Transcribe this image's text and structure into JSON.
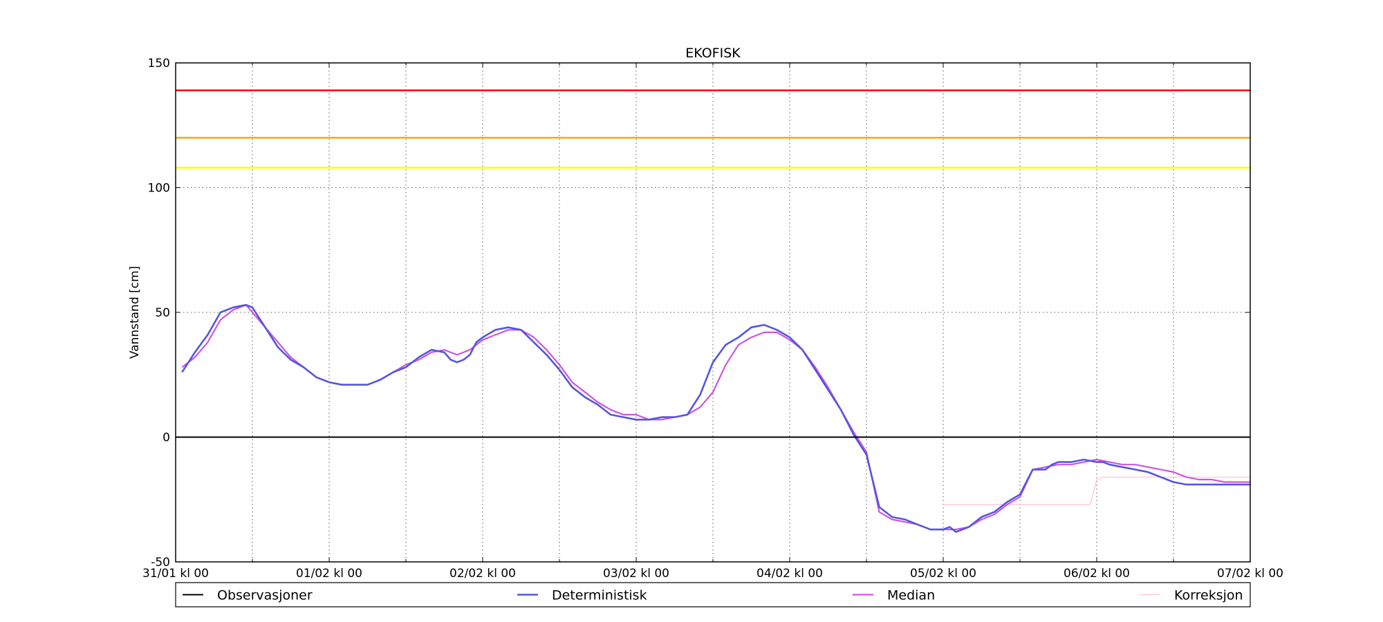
{
  "chart_data": {
    "type": "line",
    "title": "EKOFISK",
    "ylabel": "Vannstand [cm]",
    "xlabel": "",
    "ylim": [
      -50,
      150
    ],
    "yticks": [
      -50,
      0,
      50,
      100,
      150
    ],
    "xlim": [
      0,
      168
    ],
    "xticks": [
      {
        "pos": 0,
        "label": "31/01 kl 00"
      },
      {
        "pos": 24,
        "label": "01/02 kl 00"
      },
      {
        "pos": 48,
        "label": "02/02 kl 00"
      },
      {
        "pos": 72,
        "label": "03/02 kl 00"
      },
      {
        "pos": 96,
        "label": "04/02 kl 00"
      },
      {
        "pos": 120,
        "label": "05/02 kl 00"
      },
      {
        "pos": 144,
        "label": "06/02 kl 00"
      },
      {
        "pos": 168,
        "label": "07/02 kl 00"
      }
    ],
    "minor_xticks": [
      12,
      36,
      60,
      84,
      108,
      132,
      156
    ],
    "grid": true,
    "legend_position": "bottom",
    "thresholds": [
      {
        "value": 139,
        "color": "#ff0000"
      },
      {
        "value": 120,
        "color": "#ffa500"
      },
      {
        "value": 108,
        "color": "#ffff00"
      }
    ],
    "series": [
      {
        "name": "Observasjoner",
        "color": "#000000",
        "x": [
          0,
          168
        ],
        "y": [
          0,
          0
        ]
      },
      {
        "name": "Deterministisk",
        "color": "#5555dd",
        "x": [
          1,
          3,
          5,
          7,
          9,
          11,
          12,
          14,
          16,
          18,
          20,
          22,
          24,
          26,
          28,
          30,
          32,
          34,
          36,
          38,
          40,
          42,
          43,
          44,
          45,
          46,
          47,
          48,
          50,
          52,
          54,
          56,
          58,
          60,
          62,
          64,
          66,
          68,
          70,
          72,
          74,
          76,
          78,
          80,
          82,
          84,
          86,
          88,
          90,
          92,
          94,
          96,
          98,
          100,
          102,
          104,
          106,
          108,
          110,
          112,
          114,
          116,
          118,
          119,
          120,
          121,
          122,
          124,
          126,
          128,
          130,
          132,
          134,
          136,
          137,
          138,
          140,
          142,
          144,
          145,
          146,
          148,
          150,
          152,
          154,
          156,
          158,
          160,
          162,
          164,
          166,
          168
        ],
        "y": [
          26,
          34,
          41,
          50,
          52,
          53,
          52,
          44,
          36,
          31,
          28,
          24,
          22,
          21,
          21,
          21,
          23,
          26,
          28,
          32,
          35,
          34,
          31,
          30,
          31,
          33,
          38,
          40,
          43,
          44,
          43,
          38,
          33,
          27,
          20,
          16,
          13,
          9,
          8,
          7,
          7,
          8,
          8,
          9,
          17,
          30,
          37,
          40,
          44,
          45,
          43,
          40,
          35,
          27,
          19,
          11,
          1,
          -7,
          -28,
          -32,
          -33,
          -35,
          -37,
          -37,
          -37,
          -36,
          -38,
          -36,
          -32,
          -30,
          -26,
          -23,
          -13,
          -13,
          -11,
          -10,
          -10,
          -9,
          -10,
          -10,
          -11,
          -12,
          -13,
          -14,
          -16,
          -18,
          -19,
          -19,
          -19,
          -19,
          -19,
          -19
        ]
      },
      {
        "name": "Median",
        "color": "#cc55dd",
        "x": [
          1,
          3,
          5,
          7,
          9,
          11,
          12,
          14,
          16,
          18,
          20,
          22,
          24,
          26,
          28,
          30,
          32,
          34,
          36,
          38,
          40,
          42,
          44,
          46,
          48,
          50,
          52,
          54,
          56,
          58,
          60,
          62,
          64,
          66,
          68,
          70,
          72,
          74,
          76,
          78,
          80,
          82,
          84,
          86,
          88,
          90,
          92,
          94,
          96,
          98,
          100,
          102,
          104,
          106,
          108,
          110,
          112,
          114,
          116,
          118,
          120,
          122,
          124,
          126,
          128,
          130,
          132,
          134,
          136,
          138,
          140,
          142,
          144,
          146,
          148,
          150,
          152,
          154,
          156,
          158,
          160,
          162,
          164,
          166,
          168
        ],
        "y": [
          28,
          32,
          38,
          47,
          51,
          53,
          50,
          44,
          38,
          32,
          28,
          24,
          22,
          21,
          21,
          21,
          23,
          26,
          29,
          31,
          34,
          35,
          33,
          35,
          39,
          41,
          43,
          43,
          40,
          35,
          29,
          22,
          18,
          14,
          11,
          9,
          9,
          7,
          7,
          8,
          9,
          12,
          18,
          29,
          37,
          40,
          42,
          42,
          39,
          35,
          28,
          20,
          11,
          2,
          -6,
          -30,
          -33,
          -34,
          -35,
          -37,
          -37,
          -37,
          -36,
          -33,
          -31,
          -27,
          -24,
          -13,
          -12,
          -11,
          -11,
          -10,
          -9,
          -10,
          -11,
          -11,
          -12,
          -13,
          -14,
          -16,
          -17,
          -17,
          -18,
          -18,
          -18
        ],
        "note_skip": true
      },
      {
        "name": "Korreksjon",
        "color": "#ffc0cb",
        "x": [
          120,
          121,
          122,
          142,
          143,
          144,
          145,
          146,
          166,
          168
        ],
        "y": [
          -27,
          -27,
          -27,
          -27,
          -27,
          -17,
          -16,
          -16,
          -16,
          -16
        ]
      }
    ]
  }
}
